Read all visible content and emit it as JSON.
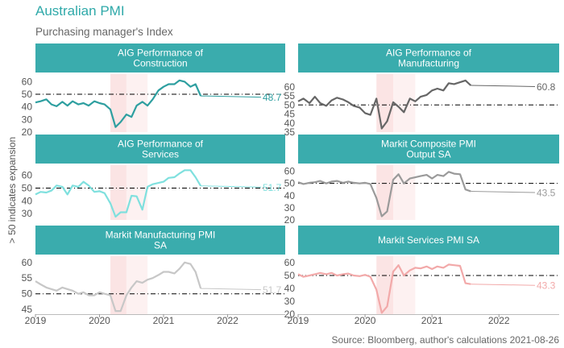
{
  "title": "Australian PMI",
  "subtitle": "Purchasing manager's Index",
  "ylabel": "> 50 indicates expansion",
  "source": "Source: Bloomberg, author's calculations 2021-08-26",
  "x_ticks": [
    "2019",
    "2020",
    "2021",
    "2022"
  ],
  "colors": {
    "accent": "#2fa9a9",
    "header_bg": "#3aacad",
    "shading": "#fbe3e3",
    "reference_line": "#000000"
  },
  "chart_data": [
    {
      "type": "line",
      "title": [
        "AIG Performance of",
        "Construction"
      ],
      "color": "#2e9fa0",
      "ylim": [
        20,
        66
      ],
      "yticks": [
        20,
        30,
        40,
        50,
        60
      ],
      "reference": 50,
      "shade": [
        [
          2020.17,
          2020.42
        ],
        [
          2020.42,
          2020.75
        ]
      ],
      "last_label": "48.7",
      "x": [
        2019.0,
        2019.08,
        2019.17,
        2019.25,
        2019.33,
        2019.42,
        2019.5,
        2019.58,
        2019.67,
        2019.75,
        2019.83,
        2019.92,
        2020.0,
        2020.08,
        2020.17,
        2020.25,
        2020.33,
        2020.42,
        2020.5,
        2020.58,
        2020.67,
        2020.75,
        2020.83,
        2020.92,
        2021.0,
        2021.08,
        2021.17,
        2021.25,
        2021.33,
        2021.42,
        2021.5,
        2021.58
      ],
      "y": [
        43.5,
        44.5,
        46.0,
        42.0,
        40.5,
        44.0,
        41.0,
        44.5,
        42.0,
        43.0,
        41.0,
        44.5,
        43.0,
        42.0,
        38.0,
        24.0,
        28.0,
        34.0,
        32.0,
        41.0,
        44.0,
        41.0,
        46.0,
        53.0,
        56.0,
        58.0,
        58.0,
        61.0,
        60.0,
        56.0,
        58.0,
        48.7
      ]
    },
    {
      "type": "line",
      "title": [
        "AIG Performance of",
        "Manufacturing"
      ],
      "color": "#666666",
      "ylim": [
        35,
        67
      ],
      "yticks": [
        35,
        40,
        45,
        50,
        55,
        60
      ],
      "reference": 50,
      "shade": [
        [
          2020.17,
          2020.42
        ],
        [
          2020.42,
          2020.75
        ]
      ],
      "last_label": "60.8",
      "x": [
        2019.0,
        2019.08,
        2019.17,
        2019.25,
        2019.33,
        2019.42,
        2019.5,
        2019.58,
        2019.67,
        2019.75,
        2019.83,
        2019.92,
        2020.0,
        2020.08,
        2020.17,
        2020.25,
        2020.33,
        2020.42,
        2020.5,
        2020.58,
        2020.67,
        2020.75,
        2020.83,
        2020.92,
        2021.0,
        2021.08,
        2021.17,
        2021.25,
        2021.33,
        2021.42,
        2021.5,
        2021.58
      ],
      "y": [
        52.0,
        53.5,
        51.0,
        54.5,
        51.0,
        49.5,
        52.5,
        54.0,
        53.0,
        51.5,
        49.5,
        48.5,
        45.5,
        44.5,
        53.5,
        37.0,
        41.0,
        51.5,
        49.0,
        46.0,
        53.5,
        52.0,
        54.5,
        55.5,
        58.0,
        59.0,
        58.0,
        62.0,
        61.5,
        62.5,
        63.5,
        60.8
      ]
    },
    {
      "type": "line",
      "title": [
        "AIG Performance of",
        "Services"
      ],
      "color": "#7fe0de",
      "ylim": [
        25,
        68
      ],
      "yticks": [
        30,
        40,
        50,
        60
      ],
      "reference": 50,
      "shade": [
        [
          2020.17,
          2020.42
        ],
        [
          2020.42,
          2020.75
        ]
      ],
      "last_label": "51.7",
      "x": [
        2019.0,
        2019.08,
        2019.17,
        2019.25,
        2019.33,
        2019.42,
        2019.5,
        2019.58,
        2019.67,
        2019.75,
        2019.83,
        2019.92,
        2020.0,
        2020.08,
        2020.17,
        2020.25,
        2020.33,
        2020.42,
        2020.5,
        2020.58,
        2020.67,
        2020.75,
        2020.83,
        2020.92,
        2021.0,
        2021.08,
        2021.17,
        2021.25,
        2021.33,
        2021.42,
        2021.5,
        2021.58
      ],
      "y": [
        45.0,
        47.0,
        46.5,
        48.0,
        52.0,
        51.0,
        45.0,
        52.0,
        51.0,
        55.0,
        52.0,
        47.0,
        47.5,
        46.0,
        38.0,
        27.5,
        31.0,
        31.0,
        44.0,
        43.5,
        33.0,
        51.0,
        53.0,
        54.0,
        55.0,
        58.0,
        58.5,
        61.5,
        64.0,
        64.0,
        58.5,
        51.7
      ]
    },
    {
      "type": "line",
      "title": [
        "Markit Composite PMI",
        "Output SA"
      ],
      "color": "#9a9a9a",
      "ylim": [
        20,
        65
      ],
      "yticks": [
        20,
        30,
        40,
        50,
        60
      ],
      "reference": 50,
      "shade": [
        [
          2020.17,
          2020.42
        ],
        [
          2020.42,
          2020.75
        ]
      ],
      "last_label": "43.5",
      "x": [
        2019.0,
        2019.08,
        2019.17,
        2019.25,
        2019.33,
        2019.42,
        2019.5,
        2019.58,
        2019.67,
        2019.75,
        2019.83,
        2019.92,
        2020.0,
        2020.08,
        2020.17,
        2020.25,
        2020.33,
        2020.42,
        2020.5,
        2020.58,
        2020.67,
        2020.75,
        2020.83,
        2020.92,
        2021.0,
        2021.08,
        2021.17,
        2021.25,
        2021.33,
        2021.42,
        2021.5,
        2021.58
      ],
      "y": [
        51.0,
        49.5,
        50.5,
        51.0,
        52.0,
        50.0,
        51.5,
        52.0,
        50.5,
        51.5,
        50.5,
        50.0,
        50.5,
        49.5,
        38.0,
        23.0,
        27.0,
        53.0,
        57.5,
        50.0,
        54.0,
        55.0,
        56.0,
        57.0,
        54.0,
        57.0,
        56.0,
        59.5,
        58.0,
        57.5,
        45.0,
        43.5
      ]
    },
    {
      "type": "line",
      "title": [
        "Markit Manufacturing PMI",
        "SA"
      ],
      "color": "#c7c7c7",
      "ylim": [
        43.5,
        62
      ],
      "yticks": [
        45,
        50,
        55,
        60
      ],
      "reference": 50,
      "shade": [
        [
          2020.17,
          2020.42
        ],
        [
          2020.42,
          2020.75
        ]
      ],
      "last_label": "51.7",
      "x": [
        2019.0,
        2019.08,
        2019.17,
        2019.25,
        2019.33,
        2019.42,
        2019.5,
        2019.58,
        2019.67,
        2019.75,
        2019.83,
        2019.92,
        2020.0,
        2020.08,
        2020.17,
        2020.25,
        2020.33,
        2020.42,
        2020.5,
        2020.58,
        2020.67,
        2020.75,
        2020.83,
        2020.92,
        2021.0,
        2021.08,
        2021.17,
        2021.25,
        2021.33,
        2021.42,
        2021.5,
        2021.58
      ],
      "y": [
        54.0,
        53.0,
        52.0,
        51.5,
        51.0,
        52.0,
        51.5,
        51.0,
        50.0,
        50.5,
        49.5,
        49.5,
        50.5,
        50.0,
        49.5,
        44.5,
        44.5,
        49.5,
        52.0,
        54.0,
        53.5,
        54.5,
        55.0,
        56.0,
        57.0,
        57.0,
        56.5,
        58.0,
        60.0,
        59.5,
        57.0,
        51.7
      ]
    },
    {
      "type": "line",
      "title": [
        "Markit Services PMI SA"
      ],
      "color": "#f2a9a9",
      "ylim": [
        20,
        65
      ],
      "yticks": [
        20,
        30,
        40,
        50,
        60
      ],
      "reference": 50,
      "shade": [
        [
          2020.17,
          2020.42
        ],
        [
          2020.42,
          2020.75
        ]
      ],
      "last_label": "43.3",
      "x": [
        2019.0,
        2019.08,
        2019.17,
        2019.25,
        2019.33,
        2019.42,
        2019.5,
        2019.58,
        2019.67,
        2019.75,
        2019.83,
        2019.92,
        2020.0,
        2020.08,
        2020.17,
        2020.25,
        2020.33,
        2020.42,
        2020.5,
        2020.58,
        2020.67,
        2020.75,
        2020.83,
        2020.92,
        2021.0,
        2021.08,
        2021.17,
        2021.25,
        2021.33,
        2021.42,
        2021.5,
        2021.58
      ],
      "y": [
        51.0,
        49.0,
        50.0,
        51.0,
        52.0,
        51.0,
        52.0,
        50.0,
        51.0,
        51.5,
        50.0,
        49.5,
        50.5,
        49.0,
        39.0,
        21.0,
        26.0,
        53.0,
        58.0,
        50.0,
        54.0,
        56.0,
        55.5,
        57.0,
        55.0,
        57.0,
        56.0,
        58.5,
        58.0,
        57.5,
        44.0,
        43.3
      ]
    }
  ]
}
